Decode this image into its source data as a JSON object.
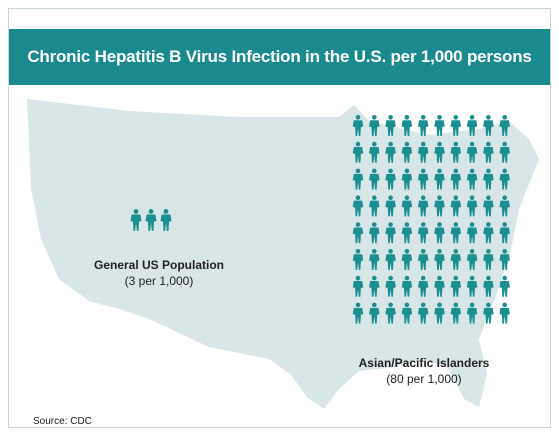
{
  "title": "Chronic Hepatitis B Virus Infection in the U.S. per 1,000 persons",
  "source": "Source: CDC",
  "colors": {
    "header": "#1b8a8f",
    "icon": "#1a8f92",
    "map": "#d8e6e7"
  },
  "icon": "person-icon",
  "chart_data": {
    "type": "pictograph",
    "unit": "persons per 1,000",
    "series": [
      {
        "name": "General US Population",
        "label": "(3 per 1,000)",
        "value": 3
      },
      {
        "name": "Asian/Pacific Islanders",
        "label": "(80 per 1,000)",
        "value": 80
      }
    ]
  }
}
